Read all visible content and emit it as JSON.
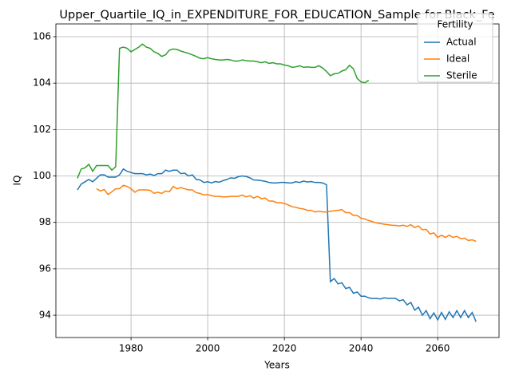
{
  "chart_data": {
    "type": "line",
    "title": "Upper_Quartile_IQ_in_EXPENDITURE_FOR_EDUCATION_Sample for Black_Fe",
    "xlabel": "Years",
    "ylabel": "IQ",
    "x": [
      1966,
      1967,
      1968,
      1969,
      1970,
      1971,
      1972,
      1973,
      1974,
      1975,
      1976,
      1977,
      1978,
      1979,
      1980,
      1981,
      1982,
      1983,
      1984,
      1985,
      1986,
      1987,
      1988,
      1989,
      1990,
      1991,
      1992,
      1993,
      1994,
      1995,
      1996,
      1997,
      1998,
      1999,
      2000,
      2001,
      2002,
      2003,
      2004,
      2005,
      2006,
      2007,
      2008,
      2009,
      2010,
      2011,
      2012,
      2013,
      2014,
      2015,
      2016,
      2017,
      2018,
      2019,
      2020,
      2021,
      2022,
      2023,
      2024,
      2025,
      2026,
      2027,
      2028,
      2029,
      2030,
      2031,
      2032,
      2033,
      2034,
      2035,
      2036,
      2037,
      2038,
      2039,
      2040,
      2041,
      2042,
      2043,
      2044,
      2045,
      2046,
      2047,
      2048,
      2049,
      2050,
      2051,
      2052,
      2053,
      2054,
      2055,
      2056,
      2057,
      2058,
      2059,
      2060,
      2061,
      2062,
      2063,
      2064,
      2065,
      2066,
      2067,
      2068,
      2069,
      2070
    ],
    "series": [
      {
        "name": "Actual",
        "color": "#1f77b4",
        "values": [
          99.4,
          99.65,
          99.75,
          99.85,
          99.75,
          99.9,
          100.05,
          100.05,
          99.95,
          99.95,
          99.95,
          100.05,
          100.3,
          100.2,
          100.15,
          100.1,
          100.1,
          100.1,
          100.05,
          100.08,
          100.02,
          100.1,
          100.1,
          100.25,
          100.2,
          100.25,
          100.25,
          100.1,
          100.12,
          100.0,
          100.05,
          99.85,
          99.83,
          99.72,
          99.75,
          99.7,
          99.76,
          99.73,
          99.8,
          99.85,
          99.92,
          99.9,
          99.97,
          100.0,
          99.98,
          99.92,
          99.83,
          99.82,
          99.8,
          99.77,
          99.72,
          99.7,
          99.7,
          99.72,
          99.72,
          99.7,
          99.7,
          99.75,
          99.72,
          99.78,
          99.74,
          99.76,
          99.72,
          99.72,
          99.7,
          99.62,
          95.45,
          95.58,
          95.35,
          95.4,
          95.15,
          95.2,
          94.95,
          95.0,
          94.82,
          94.82,
          94.75,
          94.72,
          94.73,
          94.7,
          94.75,
          94.73,
          94.73,
          94.73,
          94.62,
          94.67,
          94.45,
          94.55,
          94.22,
          94.35,
          94.0,
          94.2,
          93.85,
          94.1,
          93.8,
          94.12,
          93.82,
          94.15,
          93.9,
          94.2,
          93.9,
          94.2,
          93.9,
          94.12,
          93.72
        ]
      },
      {
        "name": "Ideal",
        "color": "#ff7f0e",
        "values": [
          null,
          null,
          null,
          null,
          null,
          99.45,
          99.35,
          99.42,
          99.2,
          99.32,
          99.45,
          99.45,
          99.6,
          99.55,
          99.45,
          99.3,
          99.4,
          99.4,
          99.4,
          99.38,
          99.25,
          99.3,
          99.25,
          99.35,
          99.32,
          99.55,
          99.45,
          99.5,
          99.45,
          99.4,
          99.4,
          99.28,
          99.25,
          99.18,
          99.2,
          99.15,
          99.12,
          99.12,
          99.1,
          99.1,
          99.12,
          99.12,
          99.12,
          99.18,
          99.1,
          99.15,
          99.05,
          99.12,
          99.02,
          99.05,
          98.92,
          98.92,
          98.85,
          98.85,
          98.82,
          98.75,
          98.68,
          98.65,
          98.6,
          98.58,
          98.52,
          98.52,
          98.45,
          98.48,
          98.45,
          98.45,
          98.48,
          98.5,
          98.52,
          98.55,
          98.42,
          98.42,
          98.3,
          98.3,
          98.18,
          98.15,
          98.08,
          98.03,
          97.98,
          97.95,
          97.92,
          97.9,
          97.88,
          97.87,
          97.85,
          97.88,
          97.83,
          97.9,
          97.78,
          97.85,
          97.68,
          97.7,
          97.5,
          97.55,
          97.35,
          97.45,
          97.35,
          97.45,
          97.35,
          97.4,
          97.3,
          97.32,
          97.22,
          97.25,
          97.18
        ]
      },
      {
        "name": "Sterile",
        "color": "#2ca02c",
        "values": [
          99.9,
          100.3,
          100.35,
          100.5,
          100.2,
          100.45,
          100.45,
          100.45,
          100.45,
          100.25,
          100.4,
          105.5,
          105.55,
          105.5,
          105.35,
          105.45,
          105.55,
          105.68,
          105.55,
          105.5,
          105.35,
          105.28,
          105.15,
          105.22,
          105.42,
          105.47,
          105.45,
          105.38,
          105.33,
          105.28,
          105.22,
          105.15,
          105.07,
          105.05,
          105.1,
          105.05,
          105.02,
          105.0,
          105.0,
          105.02,
          105.0,
          104.95,
          104.95,
          105.0,
          104.97,
          104.95,
          104.95,
          104.92,
          104.88,
          104.92,
          104.85,
          104.88,
          104.83,
          104.83,
          104.78,
          104.75,
          104.68,
          104.7,
          104.75,
          104.68,
          104.7,
          104.68,
          104.68,
          104.75,
          104.65,
          104.5,
          104.32,
          104.4,
          104.42,
          104.52,
          104.58,
          104.77,
          104.62,
          104.2,
          104.05,
          104.02,
          104.12,
          null,
          null,
          null,
          null,
          null,
          null,
          null,
          null,
          null,
          null,
          null,
          null,
          null,
          null,
          null,
          null,
          null,
          null,
          null,
          null,
          null,
          null,
          null,
          null,
          null,
          null,
          null,
          null
        ]
      }
    ],
    "xlim": [
      1960.4,
      2076
    ],
    "ylim": [
      93.04,
      106.55
    ],
    "xticks": [
      1980,
      2000,
      2020,
      2040,
      2060
    ],
    "yticks": [
      94,
      96,
      98,
      100,
      102,
      104,
      106
    ],
    "grid": true,
    "legend_title": "Fertility",
    "legend_loc": "upper right"
  }
}
